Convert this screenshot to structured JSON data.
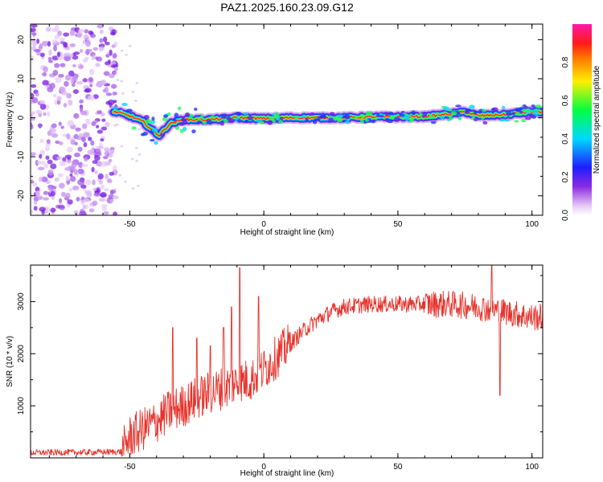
{
  "title": "PAZ1.2025.160.23.09.G12",
  "colors": {
    "snr_line": "#e8322b",
    "frame": "#000000",
    "background": "#ffffff"
  },
  "chart_data": [
    {
      "type": "heatmap",
      "xlabel": "Height of straight line (km)",
      "ylabel": "Frequency (Hz)",
      "xlim": [
        -87,
        104
      ],
      "ylim": [
        -25,
        24
      ],
      "xticks": [
        -50,
        0,
        50,
        100
      ],
      "yticks": [
        -20,
        -10,
        0,
        10,
        20
      ],
      "colorbar": {
        "label": "Normalized spectral amplitude",
        "range": [
          0,
          1
        ],
        "ticks": [
          0.0,
          0.2,
          0.4,
          0.6,
          0.8
        ],
        "colormap": "rainbow (white-violet-blue-cyan-green-yellow-red-magenta)"
      },
      "ridge": {
        "description": "main spectral ridge (frequency vs height)",
        "points": [
          {
            "x": -55,
            "y": 1.5
          },
          {
            "x": -50,
            "y": 0.5
          },
          {
            "x": -45,
            "y": -1.0
          },
          {
            "x": -42,
            "y": -3.0
          },
          {
            "x": -39,
            "y": -4.5
          },
          {
            "x": -35,
            "y": -1.5
          },
          {
            "x": -30,
            "y": -0.5
          },
          {
            "x": -20,
            "y": -0.5
          },
          {
            "x": -10,
            "y": 0.0
          },
          {
            "x": 0,
            "y": -0.2
          },
          {
            "x": 10,
            "y": 0.0
          },
          {
            "x": 20,
            "y": 0.0
          },
          {
            "x": 30,
            "y": 0.0
          },
          {
            "x": 40,
            "y": 0.2
          },
          {
            "x": 50,
            "y": 0.2
          },
          {
            "x": 60,
            "y": 0.3
          },
          {
            "x": 70,
            "y": 1.0
          },
          {
            "x": 75,
            "y": 1.5
          },
          {
            "x": 80,
            "y": 0.5
          },
          {
            "x": 90,
            "y": 0.8
          },
          {
            "x": 100,
            "y": 1.5
          },
          {
            "x": 104,
            "y": 1.5
          }
        ],
        "noise_region_x": [
          -87,
          -55
        ]
      }
    },
    {
      "type": "line",
      "xlabel": "Height of straight line (km)",
      "ylabel": "SNR (10 * v/v)",
      "xlim": [
        -87,
        104
      ],
      "ylim": [
        0,
        3700
      ],
      "xticks": [
        -50,
        0,
        50,
        100
      ],
      "yticks": [
        1000,
        2000,
        3000
      ],
      "series": [
        {
          "envelope": [
            {
              "x": -87,
              "y": 100
            },
            {
              "x": -60,
              "y": 110
            },
            {
              "x": -53,
              "y": 120
            },
            {
              "x": -50,
              "y": 400
            },
            {
              "x": -45,
              "y": 550
            },
            {
              "x": -40,
              "y": 700
            },
            {
              "x": -35,
              "y": 900
            },
            {
              "x": -30,
              "y": 1000
            },
            {
              "x": -25,
              "y": 1150
            },
            {
              "x": -20,
              "y": 1250
            },
            {
              "x": -15,
              "y": 1350
            },
            {
              "x": -10,
              "y": 1450
            },
            {
              "x": -5,
              "y": 1500
            },
            {
              "x": 0,
              "y": 1700
            },
            {
              "x": 5,
              "y": 1950
            },
            {
              "x": 10,
              "y": 2200
            },
            {
              "x": 15,
              "y": 2450
            },
            {
              "x": 20,
              "y": 2650
            },
            {
              "x": 25,
              "y": 2800
            },
            {
              "x": 30,
              "y": 2900
            },
            {
              "x": 40,
              "y": 2950
            },
            {
              "x": 50,
              "y": 2950
            },
            {
              "x": 60,
              "y": 2950
            },
            {
              "x": 70,
              "y": 2950
            },
            {
              "x": 80,
              "y": 2900
            },
            {
              "x": 90,
              "y": 2800
            },
            {
              "x": 100,
              "y": 2700
            },
            {
              "x": 104,
              "y": 2700
            }
          ],
          "spikes": [
            {
              "x": -34,
              "y": 2500
            },
            {
              "x": -25,
              "y": 2300
            },
            {
              "x": -20,
              "y": 2150
            },
            {
              "x": -15,
              "y": 2500
            },
            {
              "x": -12,
              "y": 2900
            },
            {
              "x": -9,
              "y": 3650
            },
            {
              "x": -2,
              "y": 3100
            },
            {
              "x": 85,
              "y": 3700
            },
            {
              "x": 88,
              "y": 1200
            }
          ]
        }
      ]
    }
  ]
}
